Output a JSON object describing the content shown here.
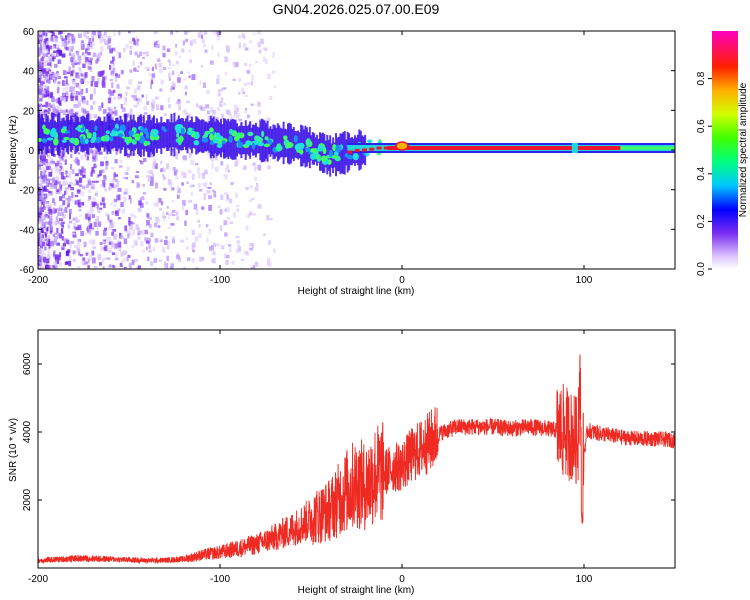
{
  "title": "GN04.2026.025.07.00.E09",
  "colors": {
    "accent": "#ee2a22",
    "ridge_red": "#ee1530",
    "spectrogram_purple": "#7a2df0",
    "ridge_cyan": "#20e0e0"
  },
  "chart_data": [
    {
      "type": "heatmap",
      "title": "GN04.2026.025.07.00.E09",
      "xlabel": "Height of straight line (km)",
      "ylabel": "Frequency (Hz)",
      "xlim": [
        -200,
        150
      ],
      "ylim": [
        -60,
        60
      ],
      "x_ticks": [
        -200,
        -100,
        0,
        100
      ],
      "x_tick_labels": [
        "-200",
        "-100",
        "0",
        "100"
      ],
      "y_ticks": [
        60,
        40,
        20,
        0,
        -20,
        -40,
        -60
      ],
      "y_tick_labels": [
        "60",
        "40",
        "20",
        "0",
        "-20",
        "-40",
        "-60"
      ],
      "ridge": {
        "x": [
          -200,
          -180,
          -160,
          -140,
          -120,
          -110,
          -100,
          -90,
          -80,
          -70,
          -60,
          -50,
          -45,
          -40,
          -35,
          -30,
          -25,
          -20,
          -15,
          -10,
          -5,
          0,
          5,
          10,
          50,
          100,
          150
        ],
        "y": [
          8,
          8,
          8,
          7,
          8,
          7,
          6,
          5,
          5,
          4,
          3,
          1,
          -1,
          -3,
          -2,
          -1,
          0,
          0,
          1,
          1,
          1,
          2,
          1,
          1,
          1,
          1,
          1
        ]
      },
      "colorbar": {
        "label": "Normalized spectral amplitude",
        "range": [
          0.0,
          1.0
        ],
        "ticks": [
          0.0,
          0.2,
          0.4,
          0.6,
          0.8
        ],
        "tick_labels": [
          "0.0",
          "0.2",
          "0.4",
          "0.6",
          "0.8"
        ]
      }
    },
    {
      "type": "line",
      "xlabel": "Height of straight line (km)",
      "ylabel": "SNR (10 * v/v)",
      "xlim": [
        -200,
        150
      ],
      "ylim": [
        0,
        7000
      ],
      "x_ticks": [
        -200,
        -100,
        0,
        100
      ],
      "x_tick_labels": [
        "-200",
        "-100",
        "0",
        "100"
      ],
      "y_ticks": [
        2000,
        4000,
        6000
      ],
      "y_tick_labels": [
        "2000",
        "4000",
        "6000"
      ],
      "series": [
        {
          "color": "#ee2a22",
          "x": [
            -200,
            -190,
            -180,
            -170,
            -160,
            -150,
            -140,
            -130,
            -120,
            -110,
            -100,
            -90,
            -80,
            -70,
            -60,
            -50,
            -40,
            -30,
            -25,
            -20,
            -15,
            -10,
            -5,
            0,
            5,
            10,
            15,
            20,
            25,
            30,
            40,
            50,
            60,
            70,
            80,
            85,
            90,
            95,
            98,
            100,
            102,
            105,
            110,
            120,
            130,
            140,
            150
          ],
          "y": [
            220,
            250,
            280,
            280,
            260,
            240,
            220,
            230,
            260,
            380,
            460,
            580,
            700,
            900,
            1150,
            1450,
            1700,
            2300,
            2500,
            2400,
            2750,
            2800,
            2950,
            3000,
            3300,
            3500,
            3700,
            3950,
            4050,
            4150,
            4150,
            4150,
            4100,
            4150,
            4100,
            4050,
            4000,
            3800,
            3600,
            3400,
            4050,
            4000,
            3950,
            3850,
            3800,
            3800,
            3750
          ]
        }
      ]
    }
  ]
}
